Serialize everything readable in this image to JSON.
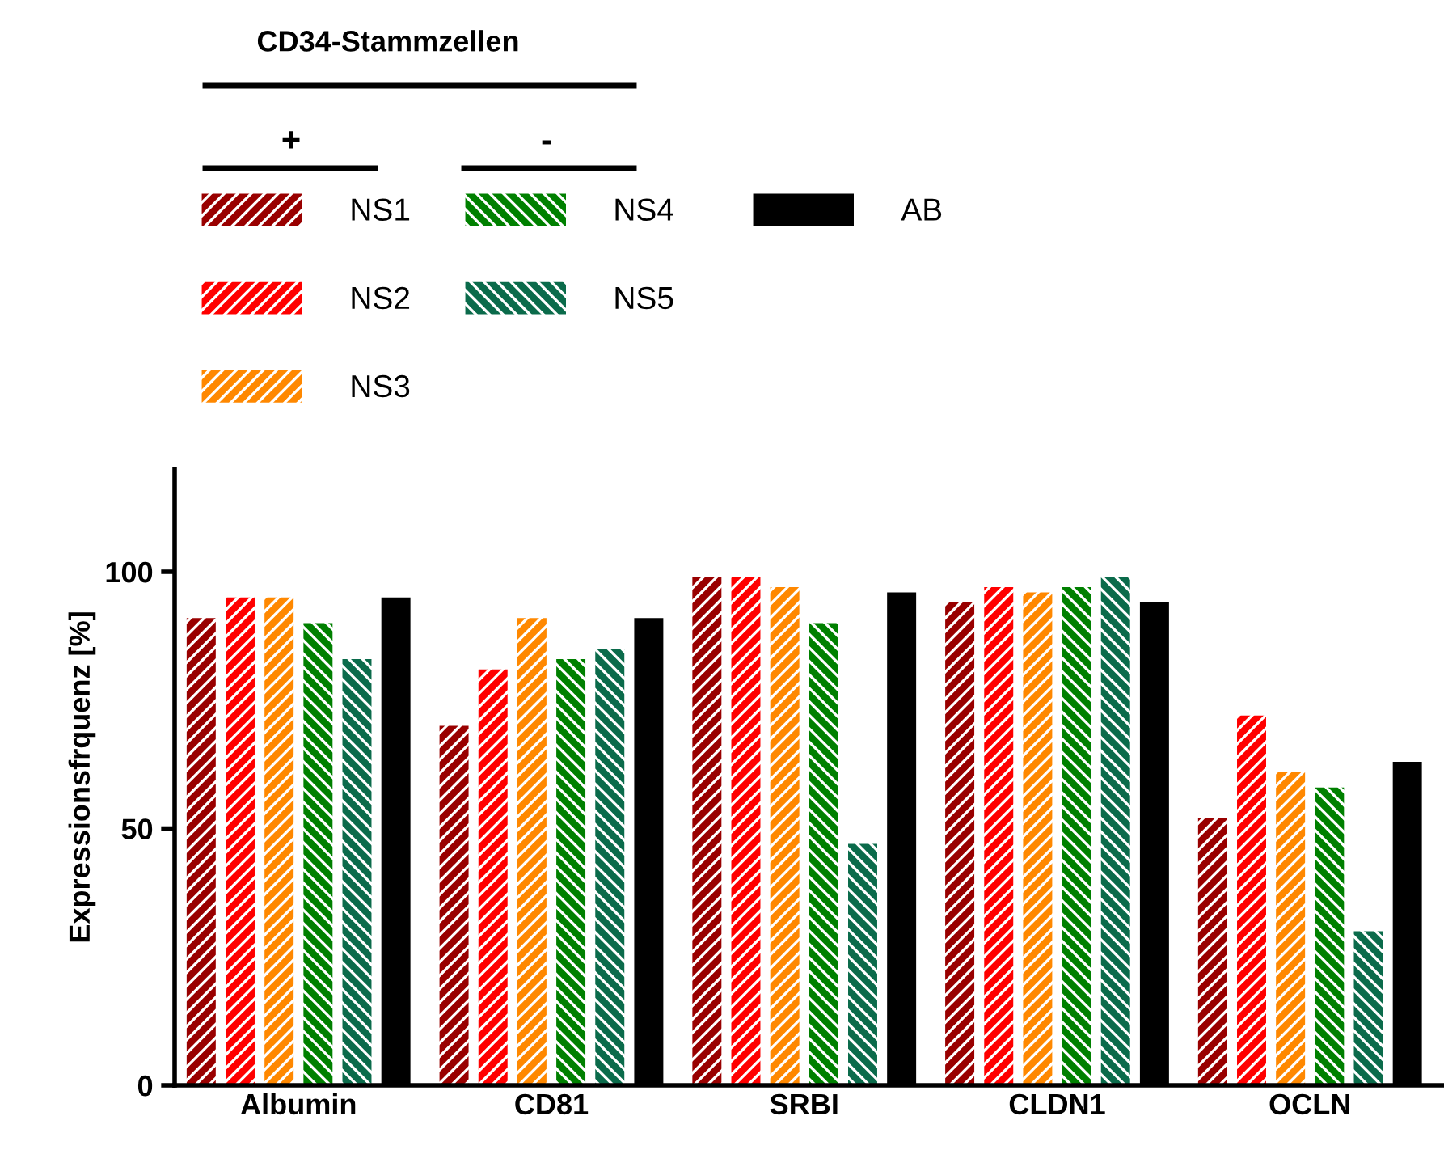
{
  "chart_data": {
    "type": "bar",
    "ylabel": "Expressionsfrquenz [%]",
    "legend_title": "CD34-Stammzellen",
    "annotations": [
      "+",
      "-"
    ],
    "categories": [
      "Albumin",
      "CD81",
      "SRBI",
      "CLDN1",
      "OCLN"
    ],
    "series": [
      {
        "name": "NS1",
        "color": "#990000",
        "values": [
          91,
          70,
          99,
          94,
          52
        ]
      },
      {
        "name": "NS2",
        "color": "#ff0000",
        "values": [
          95,
          81,
          99,
          97,
          72
        ]
      },
      {
        "name": "NS3",
        "color": "#ff8800",
        "values": [
          95,
          91,
          97,
          96,
          61
        ]
      },
      {
        "name": "NS4",
        "color": "#008000",
        "values": [
          90,
          83,
          90,
          97,
          58
        ]
      },
      {
        "name": "NS5",
        "color": "#0b6b4b",
        "values": [
          83,
          85,
          47,
          99,
          30
        ]
      },
      {
        "name": "AB",
        "color": "#000000",
        "values": [
          95,
          91,
          96,
          94,
          63
        ]
      }
    ],
    "ylim": [
      0,
      120
    ],
    "yticks": [
      0,
      50,
      100
    ],
    "grid": false,
    "legend": "top left"
  }
}
